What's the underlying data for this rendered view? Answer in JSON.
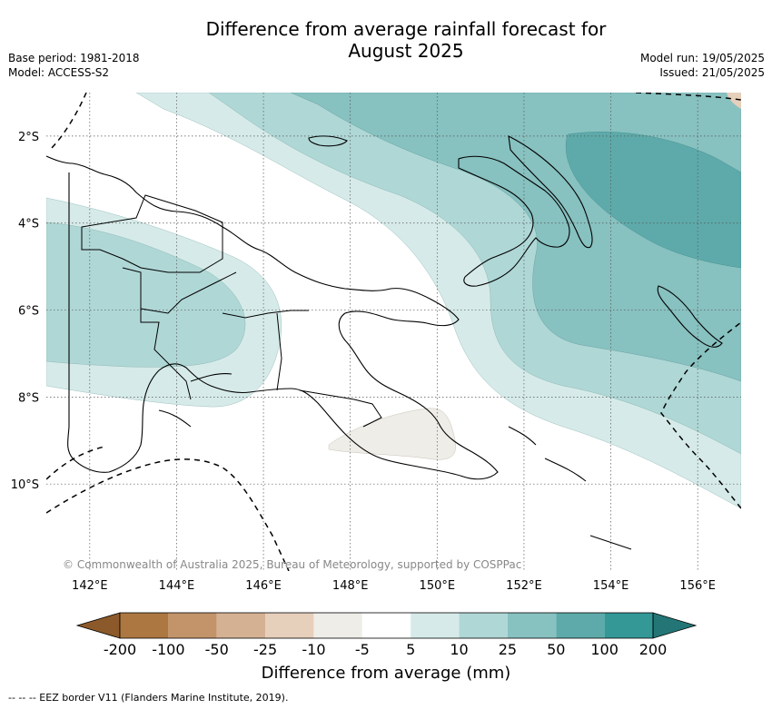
{
  "title_line1": "Difference from average rainfall forecast for",
  "title_line2": "August 2025",
  "meta_left": {
    "base_period": "Base period: 1981-2018",
    "model": "Model: ACCESS-S2"
  },
  "meta_right": {
    "model_run": "Model run: 19/05/2025",
    "issued": "Issued: 21/05/2025"
  },
  "map": {
    "lon_range": [
      141.0,
      157.0
    ],
    "lat_range": [
      -12.0,
      -1.0
    ],
    "lon_ticks": [
      "142°E",
      "144°E",
      "146°E",
      "148°E",
      "150°E",
      "152°E",
      "154°E",
      "156°E"
    ],
    "lat_ticks": [
      "2°S",
      "4°S",
      "6°S",
      "8°S",
      "10°S"
    ],
    "copyright": "© Commonwealth of Australia 2025, Bureau of Meteorology, supported by COSPPac"
  },
  "colorbar": {
    "labels": [
      "-200",
      "-100",
      "-50",
      "-25",
      "-10",
      "-5",
      "5",
      "10",
      "25",
      "50",
      "100",
      "200"
    ],
    "colors": [
      "#8c5a2a",
      "#ad7741",
      "#c3946a",
      "#d5b193",
      "#e6cfbb",
      "#efede8",
      "#ffffff",
      "#d6ebe9",
      "#afd7d6",
      "#87c1c0",
      "#5eaaaa",
      "#339896",
      "#237675"
    ],
    "title": "Difference from average (mm)"
  },
  "footer_note": "--  --  -- EEZ border V11 (Flanders Marine Institute, 2019)."
}
